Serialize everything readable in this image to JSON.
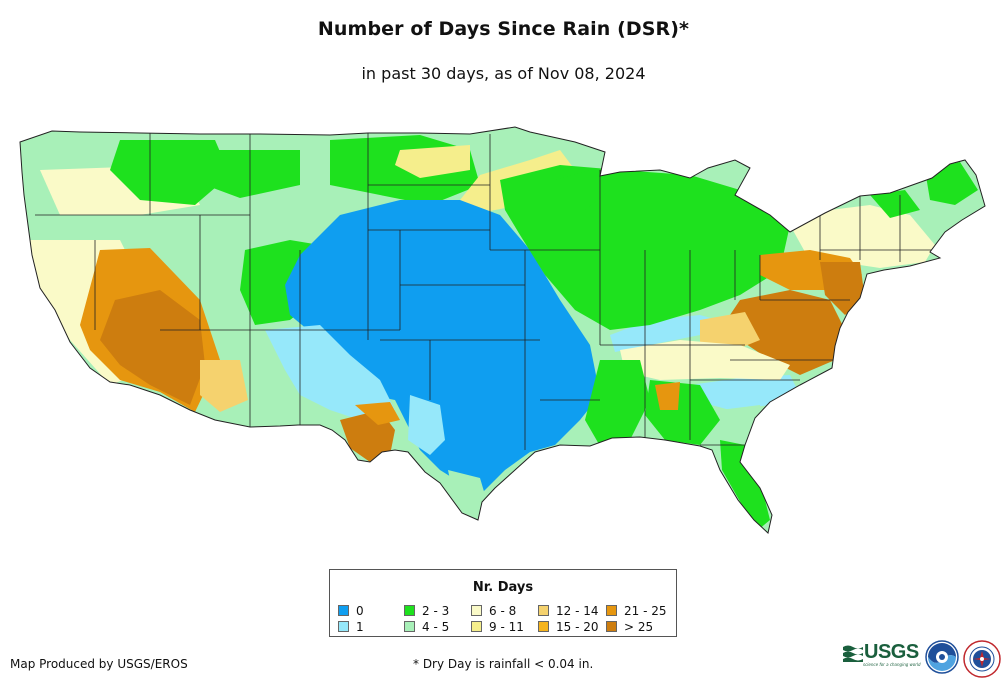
{
  "header": {
    "title": "Number of Days Since Rain (DSR)*",
    "subtitle": "in past 30 days, as of Nov 08, 2024"
  },
  "legend": {
    "title": "Nr. Days",
    "items": [
      {
        "label": "0",
        "color": "#0f9ef0"
      },
      {
        "label": "1",
        "color": "#96e8fa"
      },
      {
        "label": "2 - 3",
        "color": "#1ee11e"
      },
      {
        "label": "4 - 5",
        "color": "#a8f0b8"
      },
      {
        "label": "6 - 8",
        "color": "#fafac8"
      },
      {
        "label": "9 - 11",
        "color": "#f5ee8c"
      },
      {
        "label": "12 - 14",
        "color": "#f5d26e"
      },
      {
        "label": "15 - 20",
        "color": "#f5b41e"
      },
      {
        "label": "21 - 25",
        "color": "#e6960f"
      },
      {
        "label": "> 25",
        "color": "#cd7d0f"
      }
    ]
  },
  "footer": {
    "credit": "Map Produced by USGS/EROS",
    "note": "* Dry Day is rainfall < 0.04 in."
  },
  "logos": [
    {
      "name": "usgs-logo",
      "text": "USGS",
      "tagline": "science for a changing world"
    },
    {
      "name": "noaa-logo",
      "text": "NOAA"
    },
    {
      "name": "nws-logo",
      "text": "NATIONAL WEATHER SERVICE"
    }
  ]
}
